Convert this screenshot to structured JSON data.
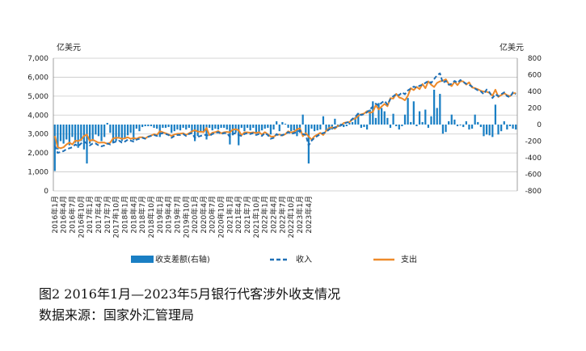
{
  "caption": {
    "title": "图2 2016年1月—2023年5月银行代客涉外收支情况",
    "source": "数据来源：国家外汇管理局"
  },
  "colors": {
    "bar": "#1a7fc4",
    "income": "#1f6fb5",
    "expense": "#ee8a2a",
    "grid": "#c8c8c8"
  },
  "chart_data": {
    "type": "bar+line",
    "left_unit": "亿美元",
    "right_unit": "亿美元",
    "left_ylim": [
      0,
      7000
    ],
    "left_ticks": [
      "0",
      "1,000",
      "2,000",
      "3,000",
      "4,000",
      "5,000",
      "6,000",
      "7,000"
    ],
    "right_ylim": [
      -800,
      800
    ],
    "right_ticks": [
      "-800",
      "-600",
      "-400",
      "-200",
      "0",
      "200",
      "400",
      "600",
      "800"
    ],
    "grid": true,
    "legend_position": "bottom",
    "x_tick_labels": [
      "2016年1月",
      "2016年4月",
      "2016年7月",
      "2016年10月",
      "2017年1月",
      "2017年4月",
      "2017年7月",
      "2017年10月",
      "2018年1月",
      "2018年4月",
      "2018年7月",
      "2018年10月",
      "2019年1月",
      "2019年4月",
      "2019年7月",
      "2019年10月",
      "2020年1月",
      "2020年4月",
      "2020年7月",
      "2020年10月",
      "2021年1月",
      "2021年4月",
      "2021年7月",
      "2021年10月",
      "2022年1月",
      "2022年4月",
      "2022年7月",
      "2022年10月",
      "2023年1月",
      "2023年4月"
    ],
    "series": [
      {
        "name": "收支差额(右轴)",
        "kind": "bar",
        "axis": "right",
        "values": [
          -560,
          -300,
          -200,
          -230,
          -180,
          -250,
          -150,
          -220,
          -280,
          -200,
          -300,
          -470,
          -230,
          -200,
          -120,
          -140,
          -200,
          -150,
          20,
          -100,
          -220,
          -200,
          -150,
          -200,
          -170,
          -130,
          -100,
          -190,
          -50,
          -80,
          -30,
          -20,
          -20,
          -20,
          -40,
          -50,
          -150,
          -40,
          -40,
          -30,
          -100,
          -80,
          -60,
          -70,
          -40,
          -60,
          -40,
          -90,
          -200,
          -140,
          -90,
          -80,
          -180,
          -40,
          -70,
          -50,
          -60,
          -40,
          -40,
          -60,
          -240,
          -130,
          -100,
          -250,
          -40,
          -80,
          -40,
          -70,
          -40,
          -100,
          -100,
          -70,
          -50,
          -40,
          -120,
          -60,
          40,
          -80,
          30,
          10,
          -40,
          -80,
          -70,
          -140,
          -100,
          120,
          -100,
          -470,
          -50,
          -80,
          -70,
          -60,
          100,
          -70,
          -60,
          -60,
          70,
          -30,
          10,
          -30,
          -20,
          20,
          30,
          90,
          140,
          -40,
          -30,
          -60,
          180,
          280,
          80,
          260,
          200,
          160,
          80,
          -40,
          130,
          -20,
          -60,
          -20,
          120,
          320,
          30,
          280,
          -20,
          160,
          30,
          180,
          -40,
          100,
          420,
          200,
          370,
          -110,
          -90,
          40,
          120,
          60,
          -20,
          -10,
          -30,
          40,
          -60,
          -50,
          120,
          30,
          -30,
          -140,
          -120,
          -130,
          -150,
          240,
          -120,
          -80,
          40,
          -60,
          -20,
          -50,
          -60
        ]
      },
      {
        "name": "收入",
        "kind": "line-dashed",
        "axis": "left",
        "values": [
          2400,
          2000,
          2050,
          2100,
          2200,
          2250,
          2300,
          2450,
          2350,
          2500,
          2600,
          2500,
          2400,
          2500,
          2500,
          2400,
          2350,
          2400,
          2500,
          2450,
          2550,
          2600,
          2650,
          2550,
          2600,
          2700,
          2650,
          2600,
          2700,
          2750,
          2800,
          2750,
          2850,
          2900,
          2950,
          2900,
          3000,
          3050,
          3000,
          2950,
          2800,
          2900,
          2950,
          2950,
          3000,
          2900,
          3000,
          3050,
          2800,
          2850,
          2900,
          2950,
          2950,
          2900,
          3000,
          3050,
          3100,
          3000,
          3050,
          3050,
          2850,
          3000,
          3050,
          2950,
          2900,
          3000,
          3050,
          3000,
          3050,
          2950,
          3000,
          2900,
          3050,
          2950,
          2750,
          2800,
          3000,
          2900,
          2950,
          3000,
          3100,
          3000,
          3050,
          3100,
          3200,
          3000,
          2950,
          2400,
          2650,
          2800,
          2900,
          3000,
          3050,
          3100,
          3250,
          3300,
          3350,
          3400,
          3450,
          3550,
          3600,
          3650,
          3800,
          3900,
          4100,
          4000,
          4050,
          4150,
          4300,
          4450,
          4600,
          4500,
          4650,
          4750,
          4550,
          4850,
          5000,
          5100,
          5050,
          5200,
          5100,
          5300,
          5400,
          5500,
          5450,
          5550,
          5600,
          5700,
          5800,
          5700,
          5900,
          6100,
          6200,
          5700,
          5800,
          5600,
          5650,
          5800,
          5700,
          5850,
          5750,
          5650,
          5600,
          5500,
          5400,
          5300,
          5250,
          5100,
          5350,
          5200,
          4900,
          5100,
          5000,
          5100,
          5200,
          5000,
          4950,
          5200,
          5100
        ]
      },
      {
        "name": "支出",
        "kind": "line",
        "axis": "left",
        "values": [
          2900,
          2300,
          2250,
          2300,
          2450,
          2550,
          2450,
          2650,
          2630,
          2700,
          2900,
          2970,
          2630,
          2700,
          2620,
          2540,
          2550,
          2550,
          2480,
          2550,
          2770,
          2800,
          2800,
          2750,
          2770,
          2830,
          2750,
          2790,
          2750,
          2830,
          2830,
          2770,
          2870,
          2920,
          2990,
          2950,
          3150,
          3090,
          3040,
          2980,
          2900,
          2980,
          3010,
          3020,
          3040,
          2960,
          3040,
          3140,
          3200,
          3130,
          3120,
          3100,
          3320,
          2940,
          3070,
          3100,
          3160,
          3040,
          3090,
          3110,
          3090,
          3230,
          3250,
          3200,
          2940,
          3080,
          3090,
          3070,
          3090,
          3050,
          3100,
          2970,
          3100,
          2990,
          2870,
          2860,
          2960,
          2980,
          2920,
          2990,
          3140,
          3080,
          3120,
          3240,
          3300,
          2880,
          3050,
          2870,
          2700,
          2880,
          2970,
          3060,
          2950,
          3170,
          3310,
          3360,
          3280,
          3430,
          3440,
          3580,
          3620,
          3630,
          3770,
          3810,
          3960,
          4040,
          4080,
          4210,
          4120,
          4170,
          4520,
          4300,
          4450,
          4590,
          4470,
          4890,
          4870,
          5120,
          4930,
          4880,
          4780,
          5020,
          5420,
          5320,
          5490,
          5370,
          5640,
          5420,
          5780,
          5600,
          5480,
          5700,
          5780,
          5810,
          5890,
          5640,
          5530,
          5760,
          5580,
          5790,
          5770,
          5610,
          5730,
          5460,
          5420,
          5360,
          5280,
          5240,
          5230,
          5170,
          5020,
          5340,
          4960,
          5060,
          5150,
          5050,
          5000,
          5150,
          5160
        ]
      }
    ]
  }
}
